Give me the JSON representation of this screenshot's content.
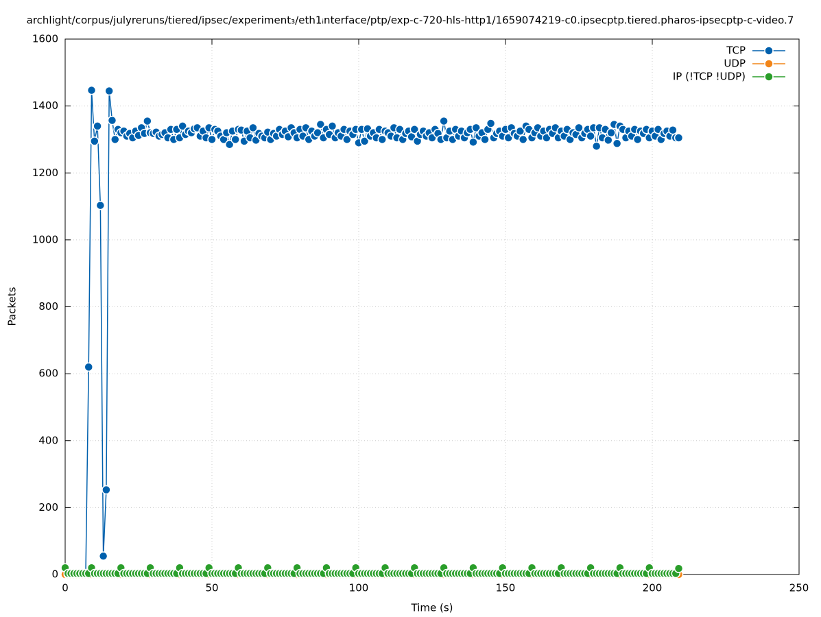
{
  "chart_data": {
    "type": "line",
    "title": "archlight/corpus/julyreruns/tiered/ipsec/experiment₃/eth1ᵢnterface/ptp/exp-c-720-hls-http1/1659074219-c0.ipsecptp.tiered.pharos-ipsecptp-c-video.7",
    "x_label": "Time (s)",
    "y_label": "Packets",
    "xlim": [
      0,
      250
    ],
    "xticks": [
      0,
      50,
      100,
      150,
      200,
      250
    ],
    "ylim": [
      0,
      1600
    ],
    "yticks": [
      0,
      200,
      400,
      600,
      800,
      1000,
      1200,
      1400,
      1600
    ],
    "grid": true,
    "legend": "top-right",
    "x": [
      0,
      1,
      2,
      3,
      4,
      5,
      6,
      7,
      8,
      9,
      10,
      11,
      12,
      13,
      14,
      15,
      16,
      17,
      18,
      19,
      20,
      21,
      22,
      23,
      24,
      25,
      26,
      27,
      28,
      29,
      30,
      31,
      32,
      33,
      34,
      35,
      36,
      37,
      38,
      39,
      40,
      41,
      42,
      43,
      44,
      45,
      46,
      47,
      48,
      49,
      50,
      51,
      52,
      53,
      54,
      55,
      56,
      57,
      58,
      59,
      60,
      61,
      62,
      63,
      64,
      65,
      66,
      67,
      68,
      69,
      70,
      71,
      72,
      73,
      74,
      75,
      76,
      77,
      78,
      79,
      80,
      81,
      82,
      83,
      84,
      85,
      86,
      87,
      88,
      89,
      90,
      91,
      92,
      93,
      94,
      95,
      96,
      97,
      98,
      99,
      100,
      101,
      102,
      103,
      104,
      105,
      106,
      107,
      108,
      109,
      110,
      111,
      112,
      113,
      114,
      115,
      116,
      117,
      118,
      119,
      120,
      121,
      122,
      123,
      124,
      125,
      126,
      127,
      128,
      129,
      130,
      131,
      132,
      133,
      134,
      135,
      136,
      137,
      138,
      139,
      140,
      141,
      142,
      143,
      144,
      145,
      146,
      147,
      148,
      149,
      150,
      151,
      152,
      153,
      154,
      155,
      156,
      157,
      158,
      159,
      160,
      161,
      162,
      163,
      164,
      165,
      166,
      167,
      168,
      169,
      170,
      171,
      172,
      173,
      174,
      175,
      176,
      177,
      178,
      179,
      180,
      181,
      182,
      183,
      184,
      185,
      186,
      187,
      188,
      189,
      190,
      191,
      192,
      193,
      194,
      195,
      196,
      197,
      198,
      199,
      200,
      201,
      202,
      203,
      204,
      205,
      206,
      207,
      208,
      209
    ],
    "series": [
      {
        "name": "TCP",
        "color": "#0060ad",
        "values": [
          0,
          0,
          0,
          0,
          0,
          0,
          0,
          0,
          620,
          1447,
          1295,
          1340,
          1103,
          55,
          253,
          1445,
          1357,
          1300,
          1330,
          1320,
          1325,
          1310,
          1318,
          1305,
          1325,
          1312,
          1335,
          1318,
          1355,
          1320,
          1318,
          1322,
          1310,
          1315,
          1320,
          1305,
          1330,
          1300,
          1330,
          1305,
          1340,
          1315,
          1325,
          1320,
          1332,
          1335,
          1310,
          1325,
          1305,
          1335,
          1300,
          1330,
          1325,
          1310,
          1300,
          1320,
          1285,
          1325,
          1300,
          1330,
          1328,
          1295,
          1325,
          1305,
          1335,
          1298,
          1318,
          1310,
          1305,
          1322,
          1300,
          1318,
          1310,
          1330,
          1315,
          1325,
          1308,
          1335,
          1320,
          1305,
          1330,
          1310,
          1335,
          1300,
          1325,
          1310,
          1320,
          1345,
          1305,
          1330,
          1315,
          1340,
          1305,
          1320,
          1310,
          1330,
          1300,
          1325,
          1315,
          1330,
          1290,
          1330,
          1295,
          1332,
          1310,
          1320,
          1305,
          1330,
          1300,
          1325,
          1320,
          1310,
          1335,
          1305,
          1330,
          1300,
          1318,
          1325,
          1308,
          1330,
          1295,
          1315,
          1325,
          1310,
          1320,
          1305,
          1330,
          1318,
          1300,
          1355,
          1305,
          1325,
          1300,
          1330,
          1310,
          1325,
          1305,
          1320,
          1330,
          1292,
          1335,
          1310,
          1320,
          1300,
          1330,
          1348,
          1305,
          1318,
          1325,
          1310,
          1330,
          1305,
          1335,
          1318,
          1310,
          1325,
          1300,
          1340,
          1330,
          1305,
          1320,
          1335,
          1310,
          1325,
          1305,
          1330,
          1318,
          1335,
          1305,
          1325,
          1310,
          1330,
          1300,
          1320,
          1315,
          1335,
          1305,
          1318,
          1330,
          1310,
          1335,
          1280,
          1335,
          1305,
          1330,
          1298,
          1320,
          1345,
          1288,
          1340,
          1330,
          1305,
          1325,
          1310,
          1330,
          1300,
          1325,
          1318,
          1330,
          1305,
          1325,
          1310,
          1330,
          1300,
          1318,
          1325,
          1310,
          1328,
          1305,
          1305
        ]
      },
      {
        "name": "UDP",
        "color": "#f28518",
        "values": [
          0,
          0,
          0,
          0,
          0,
          0,
          0,
          0,
          0,
          0,
          0,
          0,
          0,
          0,
          0,
          0,
          0,
          0,
          0,
          0,
          0,
          0,
          0,
          0,
          0,
          0,
          0,
          0,
          0,
          0,
          0,
          0,
          0,
          0,
          0,
          0,
          0,
          0,
          0,
          0,
          0,
          0,
          0,
          0,
          0,
          0,
          0,
          0,
          0,
          0,
          0,
          0,
          0,
          0,
          0,
          0,
          0,
          0,
          0,
          0,
          0,
          0,
          0,
          0,
          0,
          0,
          0,
          0,
          0,
          0,
          0,
          0,
          0,
          0,
          0,
          0,
          0,
          0,
          0,
          0,
          0,
          0,
          0,
          0,
          0,
          0,
          0,
          0,
          0,
          0,
          0,
          0,
          0,
          0,
          0,
          0,
          0,
          0,
          0,
          0,
          0,
          0,
          0,
          0,
          0,
          0,
          0,
          0,
          0,
          0,
          0,
          0,
          0,
          0,
          0,
          0,
          0,
          0,
          0,
          0,
          0,
          0,
          0,
          0,
          0,
          0,
          0,
          0,
          0,
          0,
          0,
          0,
          0,
          0,
          0,
          0,
          0,
          0,
          0,
          0,
          0,
          0,
          0,
          0,
          0,
          0,
          0,
          0,
          0,
          0,
          0,
          0,
          0,
          0,
          0,
          0,
          0,
          0,
          0,
          0,
          0,
          0,
          0,
          0,
          0,
          0,
          0,
          0,
          0,
          0,
          0,
          0,
          0,
          0,
          0,
          0,
          0,
          0,
          0,
          0,
          0,
          0,
          0,
          0,
          0,
          0,
          0,
          0,
          0,
          0,
          0,
          0,
          0,
          0,
          0,
          0,
          0,
          0,
          0,
          0,
          0,
          0,
          0,
          0,
          0,
          0,
          0,
          0,
          0,
          0
        ]
      },
      {
        "name": "IP (!TCP  !UDP)",
        "color": "#2a9e2a",
        "values": [
          20,
          3,
          3,
          3,
          3,
          3,
          3,
          3,
          3,
          20,
          3,
          3,
          3,
          3,
          3,
          3,
          3,
          3,
          3,
          20,
          3,
          3,
          3,
          3,
          3,
          3,
          3,
          3,
          3,
          20,
          3,
          3,
          3,
          3,
          3,
          3,
          3,
          3,
          3,
          20,
          3,
          3,
          3,
          3,
          3,
          3,
          3,
          3,
          3,
          20,
          3,
          3,
          3,
          3,
          3,
          3,
          3,
          3,
          3,
          20,
          3,
          3,
          3,
          3,
          3,
          3,
          3,
          3,
          3,
          20,
          3,
          3,
          3,
          3,
          3,
          3,
          3,
          3,
          3,
          20,
          3,
          3,
          3,
          3,
          3,
          3,
          3,
          3,
          3,
          20,
          3,
          3,
          3,
          3,
          3,
          3,
          3,
          3,
          3,
          20,
          3,
          3,
          3,
          3,
          3,
          3,
          3,
          3,
          3,
          20,
          3,
          3,
          3,
          3,
          3,
          3,
          3,
          3,
          3,
          20,
          3,
          3,
          3,
          3,
          3,
          3,
          3,
          3,
          3,
          20,
          3,
          3,
          3,
          3,
          3,
          3,
          3,
          3,
          3,
          20,
          3,
          3,
          3,
          3,
          3,
          3,
          3,
          3,
          3,
          20,
          3,
          3,
          3,
          3,
          3,
          3,
          3,
          3,
          3,
          20,
          3,
          3,
          3,
          3,
          3,
          3,
          3,
          3,
          3,
          20,
          3,
          3,
          3,
          3,
          3,
          3,
          3,
          3,
          3,
          20,
          3,
          3,
          3,
          3,
          3,
          3,
          3,
          3,
          3,
          20,
          3,
          3,
          3,
          3,
          3,
          3,
          3,
          3,
          3,
          20,
          3,
          3,
          3,
          3,
          3,
          3,
          3,
          3,
          3,
          18
        ]
      }
    ]
  }
}
